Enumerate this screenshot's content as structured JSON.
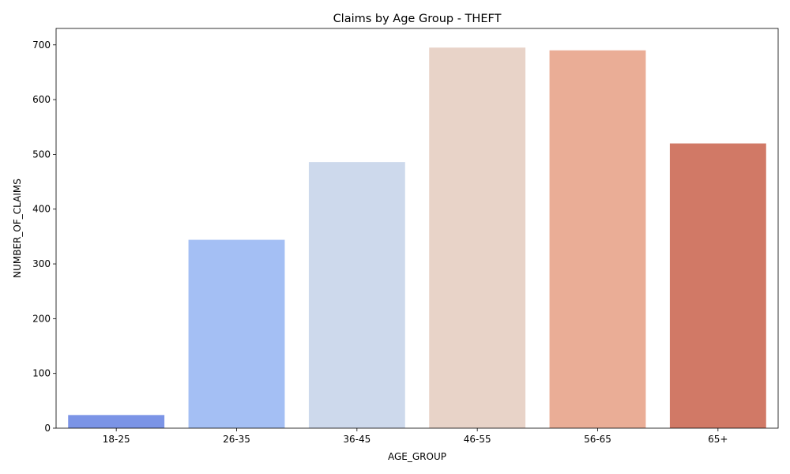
{
  "chart_data": {
    "type": "bar",
    "title": "Claims by Age Group - THEFT",
    "xlabel": "AGE_GROUP",
    "ylabel": "NUMBER_OF_CLAIMS",
    "categories": [
      "18-25",
      "26-35",
      "36-45",
      "46-55",
      "56-65",
      "65+"
    ],
    "values": [
      24,
      344,
      486,
      695,
      690,
      520
    ],
    "colors": [
      "#7b94e6",
      "#a4bff4",
      "#cdd9ec",
      "#e8d3c8",
      "#eaad96",
      "#d17966"
    ],
    "ylim": [
      0,
      730
    ],
    "yticks": [
      "0",
      "100",
      "200",
      "300",
      "400",
      "500",
      "600",
      "700"
    ],
    "grid": false,
    "legend": "none"
  }
}
